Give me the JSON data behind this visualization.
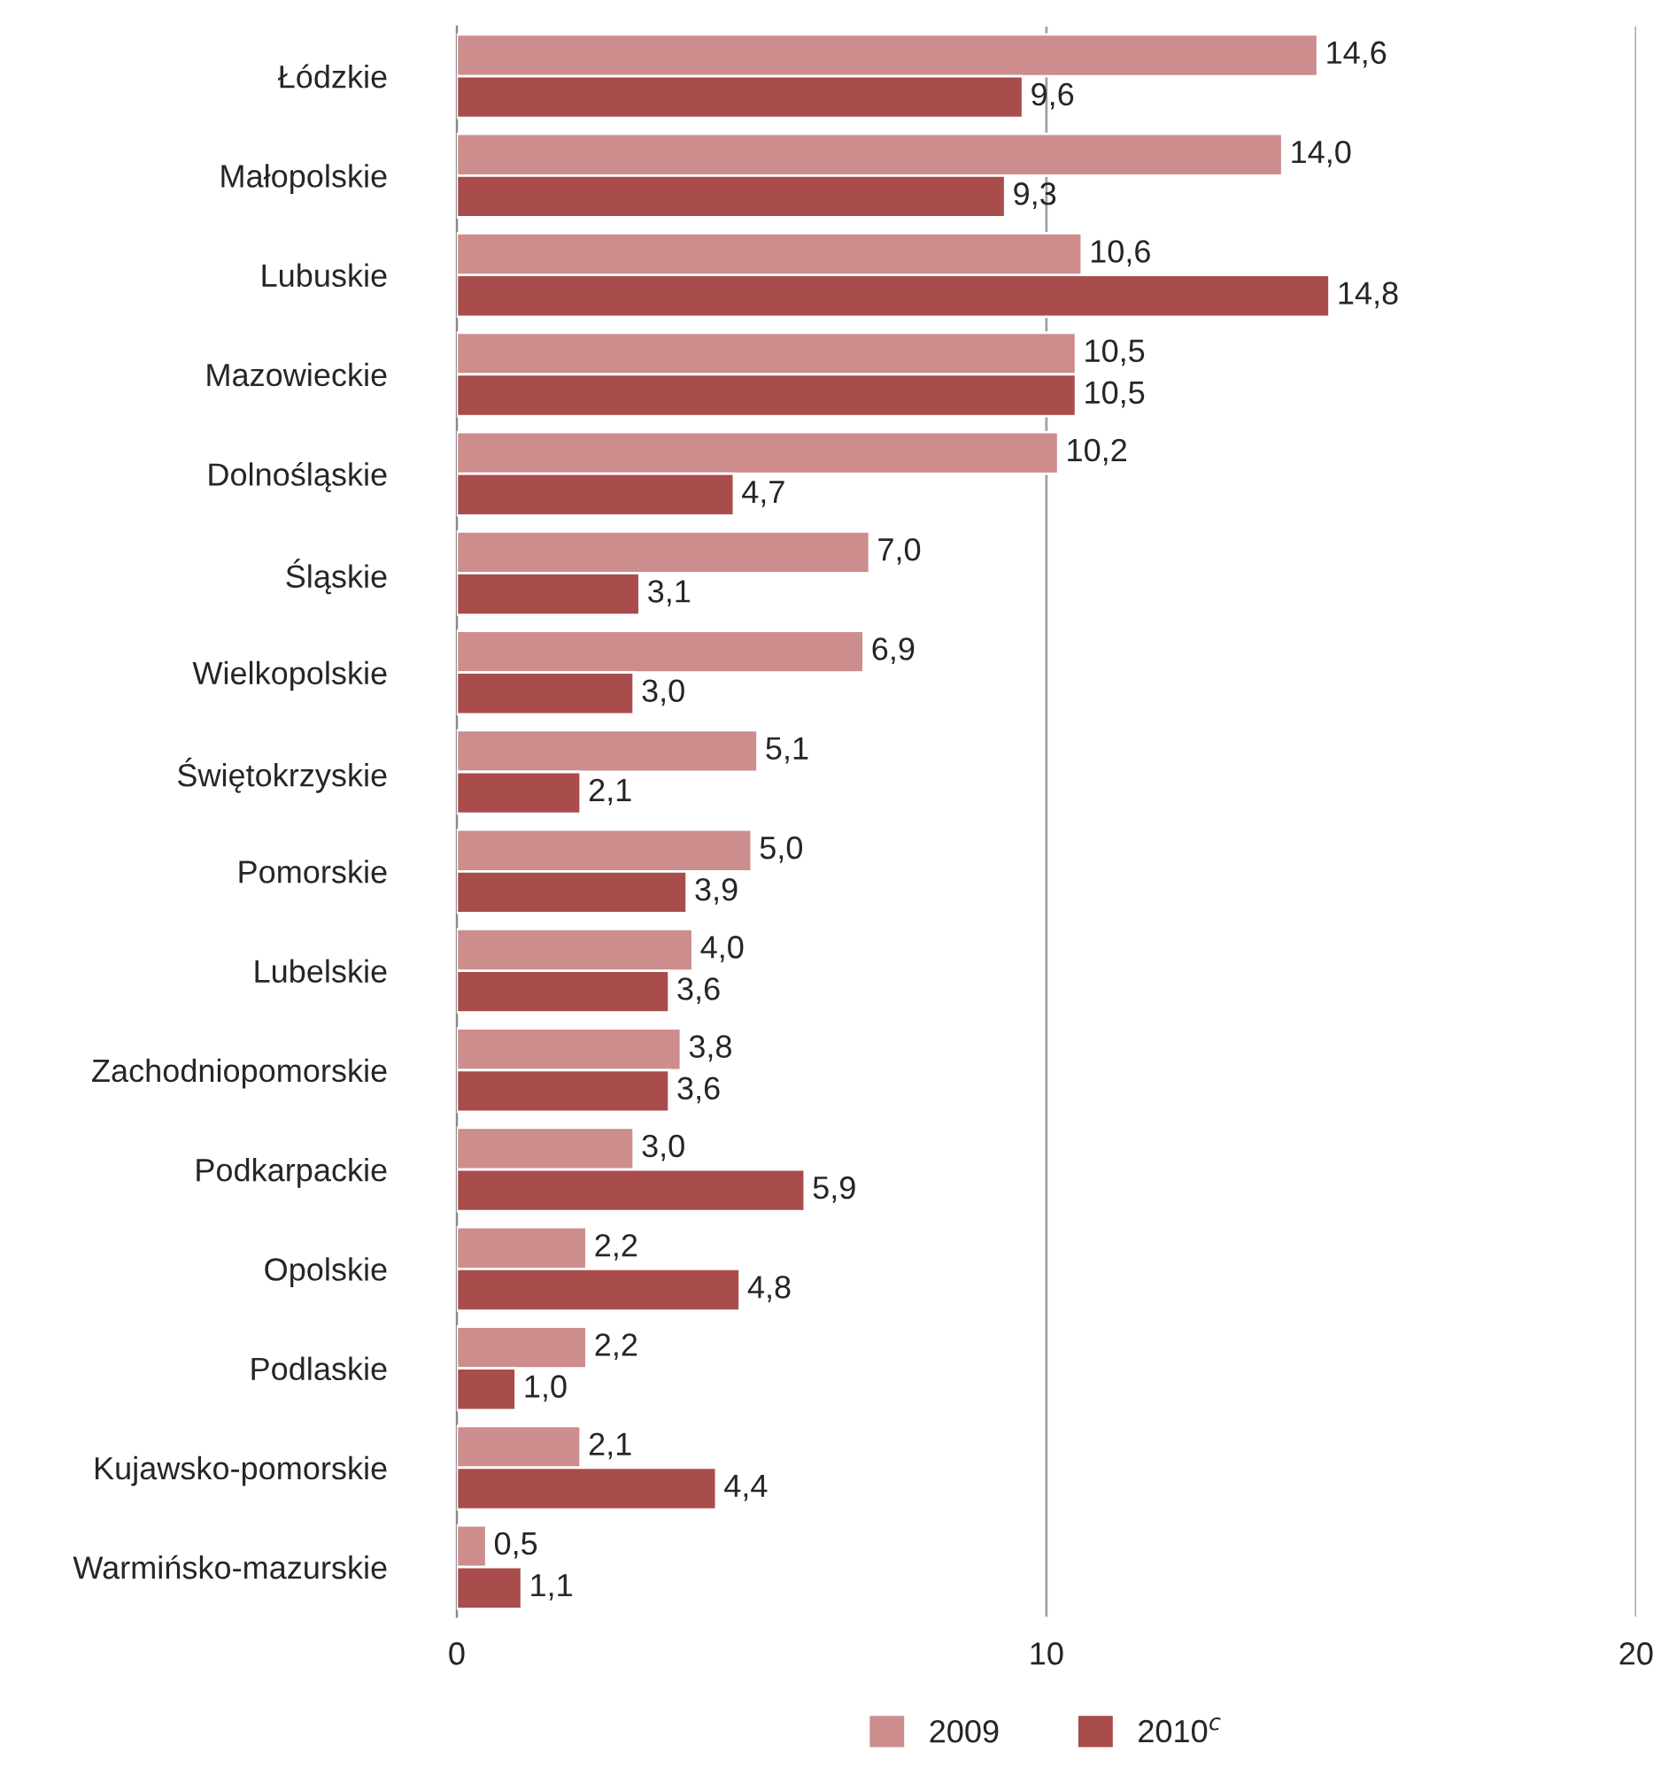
{
  "chart_data": {
    "type": "bar",
    "orientation": "horizontal",
    "categories": [
      "Łódzkie",
      "Małopolskie",
      "Lubuskie",
      "Mazowieckie",
      "Dolnośląskie",
      "Śląskie",
      "Wielkopolskie",
      "Świętokrzyskie",
      "Pomorskie",
      "Lubelskie",
      "Zachodniopomorskie",
      "Podkarpackie",
      "Opolskie",
      "Podlaskie",
      "Kujawsko-pomorskie",
      "Warmińsko-mazurskie"
    ],
    "series": [
      {
        "name": "2009",
        "color": "#cd8d8d",
        "values": [
          14.6,
          14.0,
          10.6,
          10.5,
          10.2,
          7.0,
          6.9,
          5.1,
          5.0,
          4.0,
          3.8,
          3.0,
          2.2,
          2.2,
          2.1,
          0.5
        ],
        "value_labels": [
          "14,6",
          "14,0",
          "10,6",
          "10,5",
          "10,2",
          "7,0",
          "6,9",
          "5,1",
          "5,0",
          "4,0",
          "3,8",
          "3,0",
          "2,2",
          "2,2",
          "2,1",
          "0,5"
        ]
      },
      {
        "name": "2010$^{c}$",
        "color": "#a94c4c",
        "values": [
          9.6,
          9.3,
          14.8,
          10.5,
          4.7,
          3.1,
          3.0,
          2.1,
          3.9,
          3.6,
          3.6,
          5.9,
          4.8,
          1.0,
          4.4,
          1.1
        ],
        "value_labels": [
          "9,6",
          "9,3",
          "14,8",
          "10,5",
          "4,7",
          "3,1",
          "3,0",
          "2,1",
          "3,9",
          "3,6",
          "3,6",
          "5,9",
          "4,8",
          "1,0",
          "4,4",
          "1,1"
        ]
      }
    ],
    "xlim": [
      0,
      20
    ],
    "xticks": [
      0,
      10,
      20
    ],
    "grid": "x",
    "legend": "bottom"
  }
}
